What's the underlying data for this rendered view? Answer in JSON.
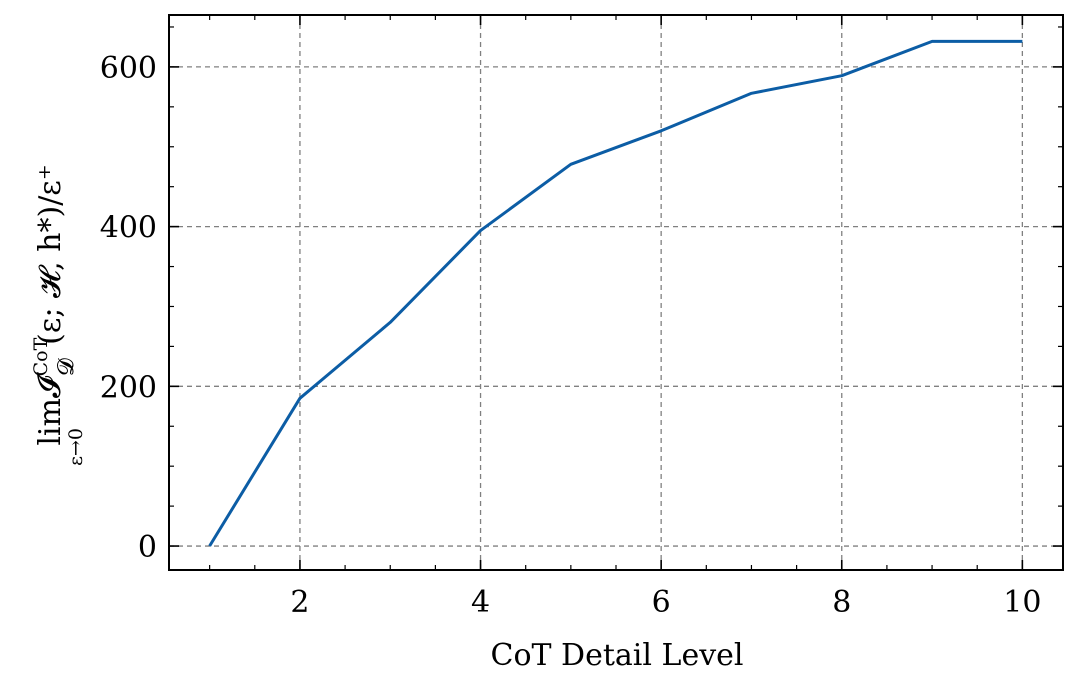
{
  "chart_data": {
    "type": "line",
    "xlabel": "CoT Detail Level",
    "ylabel": {
      "lim": "lim",
      "lim_sub": "ε→0",
      "script_I": "𝓘",
      "sup": "CoT",
      "sub_D": "𝓓",
      "rest": "(ε; 𝓗, h*)/ε⁺"
    },
    "xlim": [
      0.55,
      10.45
    ],
    "ylim": [
      -30,
      665
    ],
    "xticks": [
      2,
      4,
      6,
      8,
      10
    ],
    "yticks": [
      0,
      200,
      400,
      600
    ],
    "x": [
      1,
      2,
      3,
      4,
      5,
      6,
      7,
      8,
      9,
      10
    ],
    "series": [
      {
        "values": [
          0,
          185,
          280,
          395,
          478,
          520,
          567,
          589,
          632,
          632
        ],
        "color": "#0c5da5"
      }
    ],
    "grid": true
  }
}
